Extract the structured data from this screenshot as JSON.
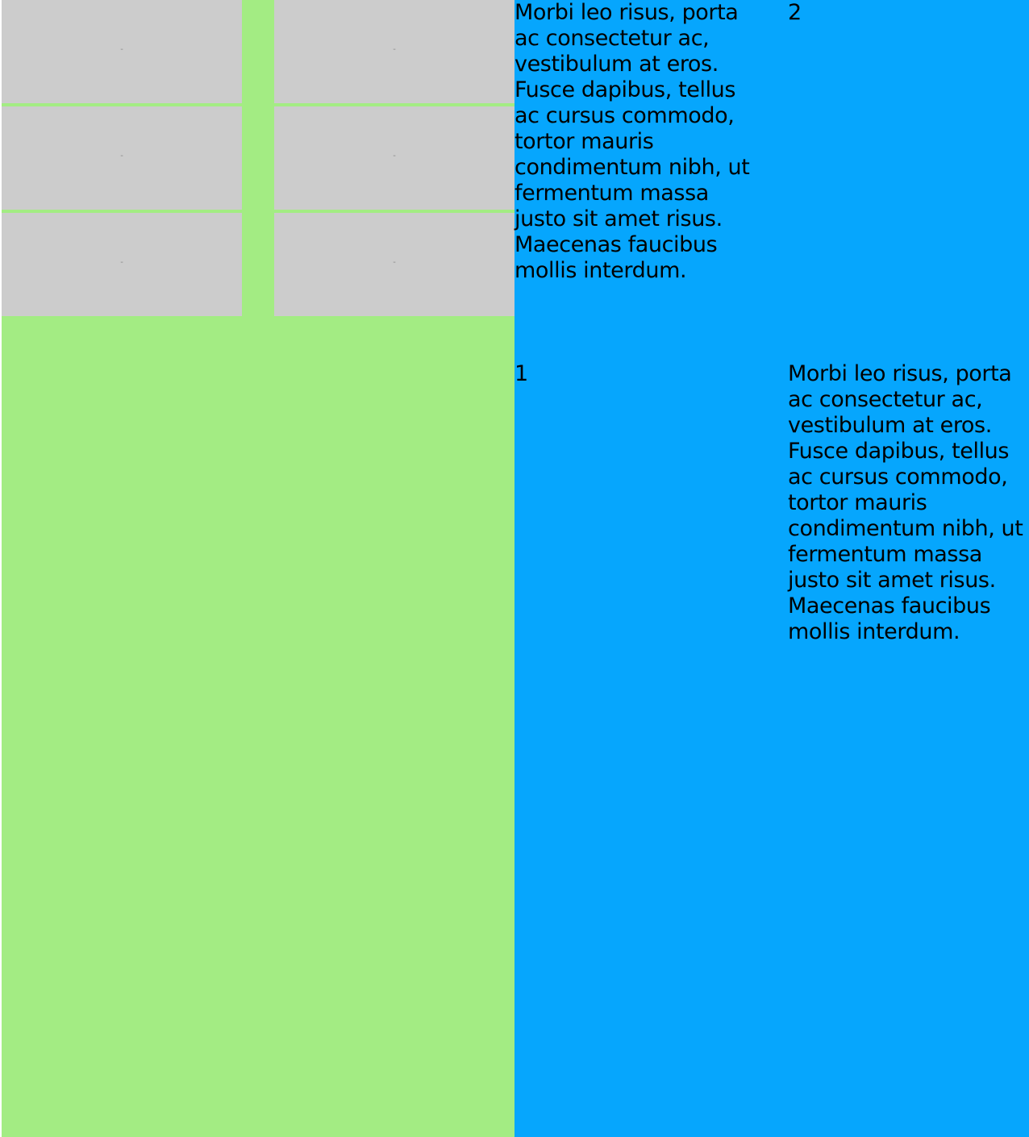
{
  "tiles": [
    "-",
    "-",
    "-",
    "-",
    "-",
    "-"
  ],
  "grid": {
    "cell_a": "Morbi leo risus, porta ac consectetur ac, vestibulum at eros. Fusce dapibus, tellus ac cursus commodo, tortor mauris condimentum nibh, ut fermentum massa justo sit amet risus. Maecenas faucibus mollis interdum.",
    "cell_b": "2",
    "cell_c": "1",
    "cell_d": "Morbi leo risus, porta ac consectetur ac, vestibulum at eros. Fusce dapibus, tellus ac cursus commodo, tortor mauris condimentum nibh, ut fermentum massa justo sit amet risus. Maecenas faucibus mollis interdum."
  },
  "colors": {
    "left_background": "#a3ec83",
    "tile_background": "#cccccc",
    "right_background": "#06a6fd",
    "text": "#000000"
  }
}
